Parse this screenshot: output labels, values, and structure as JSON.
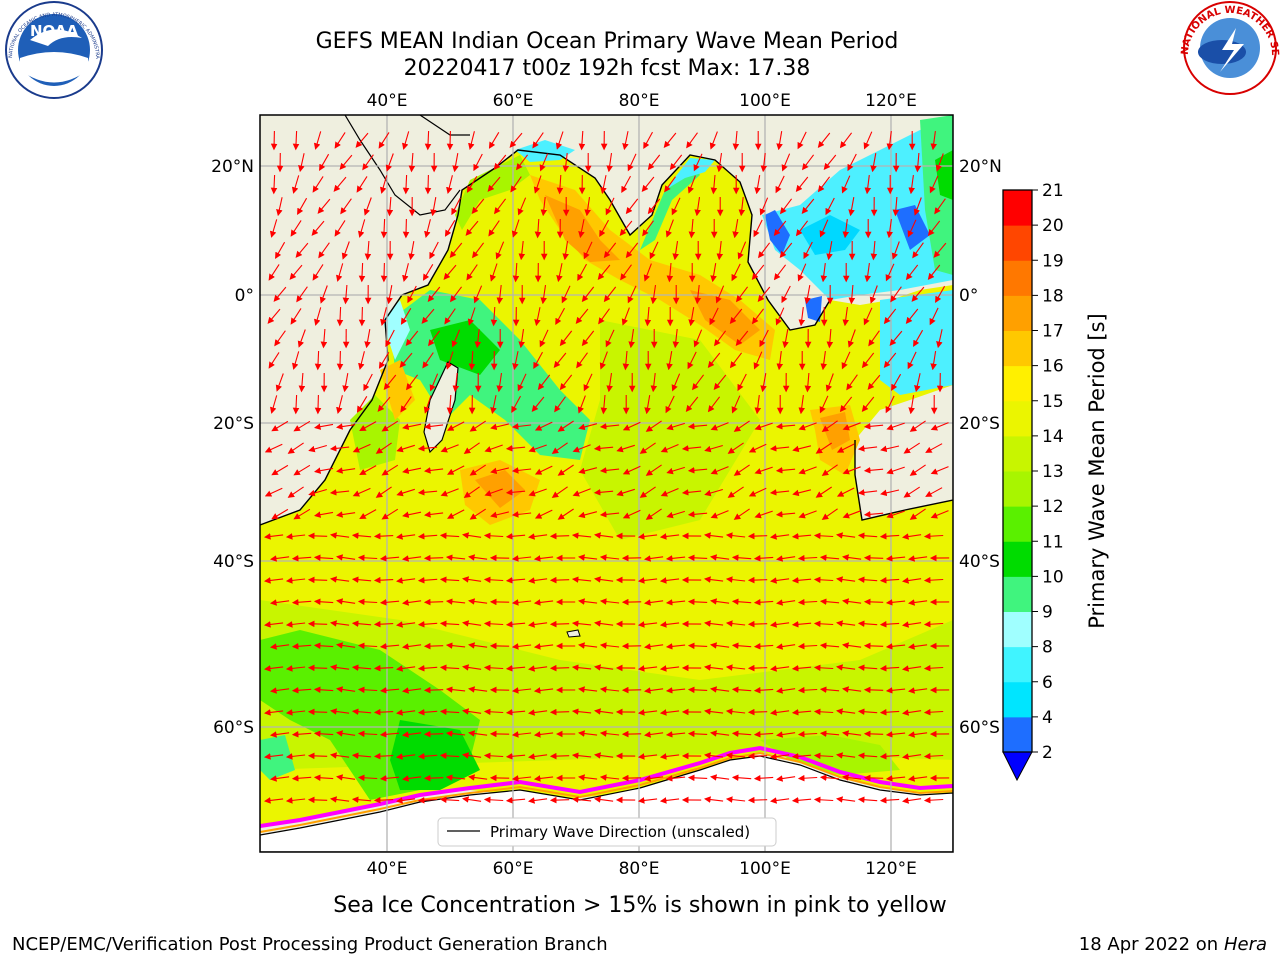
{
  "title": {
    "line1": "GEFS MEAN Indian Ocean Primary Wave Mean Period",
    "line2": "20220417 t00z 192h fcst   Max: 17.38"
  },
  "map": {
    "lon_ticks": [
      "40°E",
      "60°E",
      "80°E",
      "100°E",
      "120°E"
    ],
    "lat_ticks": [
      "20°N",
      "0°",
      "20°S",
      "40°S",
      "60°S"
    ],
    "legend_label": "Primary Wave Direction (unscaled)",
    "colors": {
      "land": "#efefdf",
      "ocean_base": "#ebf500",
      "grid": "#b4b4b4",
      "arrows": "#ff0000",
      "sea_ice": "#ff00ff"
    }
  },
  "colorbar": {
    "label": "Primary Wave Mean Period [s]",
    "ticks": [
      "2",
      "4",
      "6",
      "8",
      "9",
      "10",
      "11",
      "12",
      "13",
      "14",
      "15",
      "16",
      "17",
      "18",
      "19",
      "20",
      "21"
    ],
    "colors": [
      "#1e6eff",
      "#00e5ff",
      "#40f4ff",
      "#a0ffff",
      "#40f47e",
      "#00dc00",
      "#5af000",
      "#a8f500",
      "#c8f500",
      "#ebf500",
      "#fff000",
      "#ffc800",
      "#ffa000",
      "#ff7800",
      "#ff4600",
      "#ff0000"
    ],
    "extend_color": "#0000ff"
  },
  "subtitle": "Sea Ice Concentration > 15% is shown in pink to yellow",
  "footer": {
    "left": "NCEP/EMC/Verification Post Processing Product Generation Branch",
    "right_date": "18 Apr 2022 on ",
    "right_system": "Hera"
  },
  "logos": {
    "noaa": "NOAA",
    "nws_ring": "NATIONAL WEATHER SERVICE"
  }
}
